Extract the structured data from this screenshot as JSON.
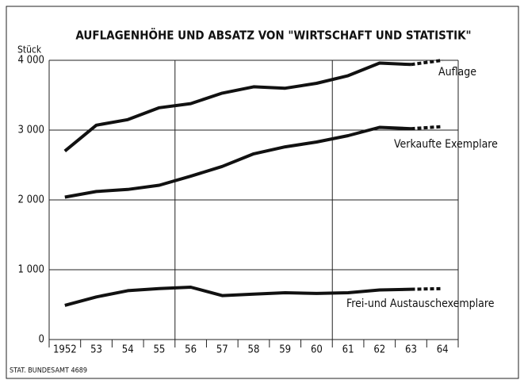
{
  "chart_data": {
    "type": "line",
    "title": "AUFLAGENHÖHE UND ABSATZ VON \"WIRTSCHAFT UND STATISTIK\"",
    "y_unit": "Stück",
    "source": "STAT. BUNDESAMT 4689",
    "x": [
      1952,
      1953,
      1954,
      1955,
      1956,
      1957,
      1958,
      1959,
      1960,
      1961,
      1962,
      1963,
      1964
    ],
    "xlim": [
      1951.5,
      1964.5
    ],
    "xticks": [
      {
        "value": 1952,
        "label": "1952"
      },
      {
        "value": 1953,
        "label": "53"
      },
      {
        "value": 1954,
        "label": "54"
      },
      {
        "value": 1955,
        "label": "55"
      },
      {
        "value": 1956,
        "label": "56"
      },
      {
        "value": 1957,
        "label": "57"
      },
      {
        "value": 1958,
        "label": "58"
      },
      {
        "value": 1959,
        "label": "59"
      },
      {
        "value": 1960,
        "label": "60"
      },
      {
        "value": 1961,
        "label": "61"
      },
      {
        "value": 1962,
        "label": "62"
      },
      {
        "value": 1963,
        "label": "63"
      },
      {
        "value": 1964,
        "label": "64"
      }
    ],
    "ylim": [
      0,
      4000
    ],
    "yticks": [
      0,
      {
        "value": 1000,
        "label": "1 000"
      },
      {
        "value": 2000,
        "label": "2 000"
      },
      {
        "value": 3000,
        "label": "3 000"
      },
      {
        "value": 4000,
        "label": "4 000"
      }
    ],
    "grid": true,
    "dashed_from": 1963,
    "series": [
      {
        "name": "Auflage",
        "color": "#111111",
        "values": [
          2700,
          3070,
          3150,
          3320,
          3380,
          3530,
          3620,
          3600,
          3670,
          3780,
          3960,
          3940,
          4000
        ]
      },
      {
        "name": "Verkaufte Exemplare",
        "color": "#111111",
        "values": [
          2040,
          2120,
          2150,
          2210,
          2340,
          2480,
          2660,
          2760,
          2830,
          2920,
          3040,
          3020,
          3050
        ]
      },
      {
        "name": "Frei-und Austauschexemplare",
        "color": "#111111",
        "values": [
          490,
          610,
          700,
          730,
          750,
          630,
          650,
          670,
          660,
          670,
          710,
          720,
          730
        ]
      }
    ]
  }
}
